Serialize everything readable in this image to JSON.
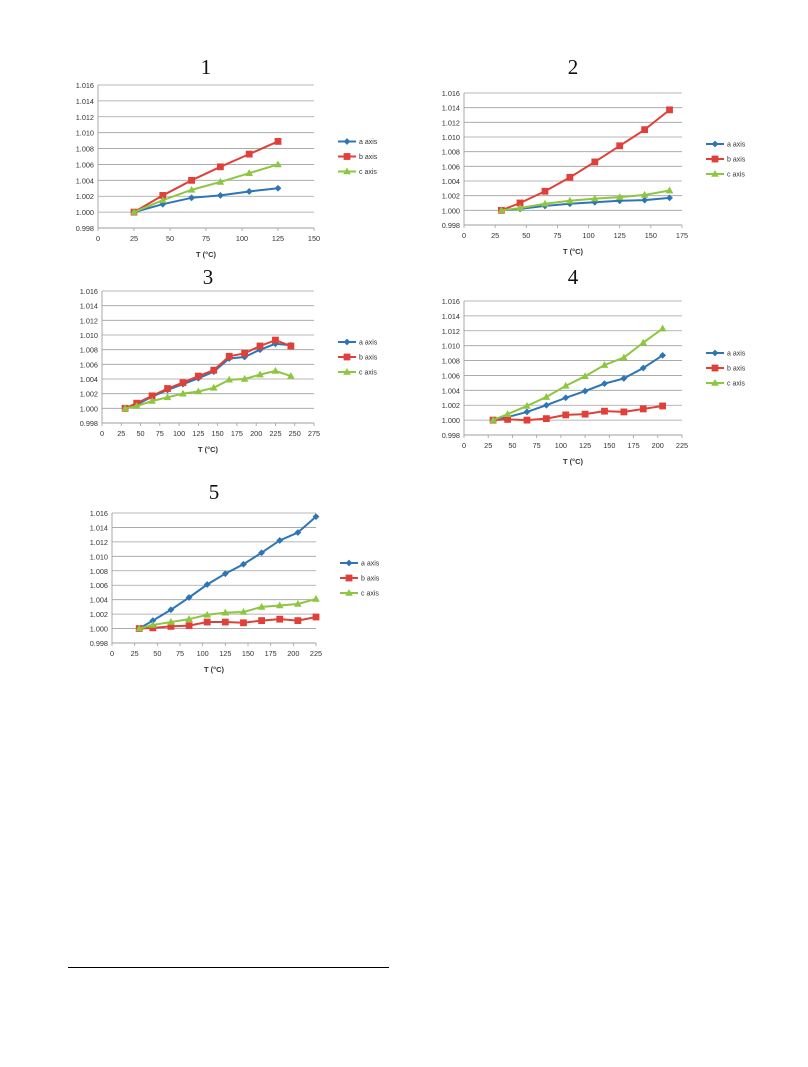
{
  "colors": {
    "a": "#2E75B6",
    "b": "#E0403A",
    "c": "#8DC63F",
    "grid": "#9f9f9f",
    "axis": "#9f9f9f"
  },
  "chart_data": [
    {
      "type": "line",
      "title": "1",
      "xlabel": "T (°C)",
      "ylabel": "",
      "xlim": [
        0,
        150
      ],
      "ylim": [
        0.998,
        1.016
      ],
      "xticks": [
        0,
        25,
        50,
        75,
        100,
        125,
        150
      ],
      "yticks": [
        0.998,
        1.0,
        1.002,
        1.004,
        1.006,
        1.008,
        1.01,
        1.012,
        1.014,
        1.016
      ],
      "xtick_labels": [
        "0",
        "25",
        "50",
        "75",
        "100",
        "125",
        "150"
      ],
      "ytick_labels": [
        "0.998",
        "1.000",
        "1.002",
        "1.004",
        "1.006",
        "1.008",
        "1.010",
        "1.012",
        "1.014",
        "1.016"
      ],
      "grid": "horizontal",
      "legend": "right",
      "series": [
        {
          "name": "a axis",
          "marker": "diamond",
          "x": [
            25,
            45,
            65,
            85,
            105,
            125
          ],
          "y": [
            1.0,
            1.001,
            1.0018,
            1.0021,
            1.0026,
            1.003
          ]
        },
        {
          "name": "b axis",
          "marker": "square",
          "x": [
            25,
            45,
            65,
            85,
            105,
            125
          ],
          "y": [
            1.0,
            1.0021,
            1.004,
            1.0057,
            1.0073,
            1.0089
          ]
        },
        {
          "name": "c axis",
          "marker": "triangle",
          "x": [
            25,
            45,
            65,
            85,
            105,
            125
          ],
          "y": [
            1.0,
            1.0015,
            1.0028,
            1.0038,
            1.0049,
            1.006
          ]
        }
      ]
    },
    {
      "type": "line",
      "title": "2",
      "xlabel": "T (°C)",
      "ylabel": "",
      "xlim": [
        0,
        175
      ],
      "ylim": [
        0.998,
        1.016
      ],
      "xticks": [
        0,
        25,
        50,
        75,
        100,
        125,
        150,
        175
      ],
      "yticks": [
        0.998,
        1.0,
        1.002,
        1.004,
        1.006,
        1.008,
        1.01,
        1.012,
        1.014,
        1.016
      ],
      "xtick_labels": [
        "0",
        "25",
        "50",
        "75",
        "100",
        "125",
        "150",
        "175"
      ],
      "ytick_labels": [
        "0.998",
        "1.000",
        "1.002",
        "1.004",
        "1.006",
        "1.008",
        "1.010",
        "1.012",
        "1.014",
        "1.016"
      ],
      "grid": "horizontal",
      "legend": "right",
      "series": [
        {
          "name": "a axis",
          "marker": "diamond",
          "x": [
            30,
            45,
            65,
            85,
            105,
            125,
            145,
            165
          ],
          "y": [
            1.0,
            1.0002,
            1.0006,
            1.0009,
            1.0011,
            1.0013,
            1.0014,
            1.0017
          ]
        },
        {
          "name": "b axis",
          "marker": "square",
          "x": [
            30,
            45,
            65,
            85,
            105,
            125,
            145,
            165
          ],
          "y": [
            1.0,
            1.001,
            1.0026,
            1.0045,
            1.0066,
            1.0088,
            1.011,
            1.0137
          ]
        },
        {
          "name": "c axis",
          "marker": "triangle",
          "x": [
            30,
            45,
            65,
            85,
            105,
            125,
            145,
            165
          ],
          "y": [
            1.0,
            1.0003,
            1.0009,
            1.0013,
            1.0016,
            1.0018,
            1.0021,
            1.0027
          ]
        }
      ]
    },
    {
      "type": "line",
      "title": "3",
      "xlabel": "T (°C)",
      "ylabel": "",
      "xlim": [
        0,
        275
      ],
      "ylim": [
        0.998,
        1.016
      ],
      "xticks": [
        0,
        25,
        50,
        75,
        100,
        125,
        150,
        175,
        200,
        225,
        250,
        275
      ],
      "yticks": [
        0.998,
        1.0,
        1.002,
        1.004,
        1.006,
        1.008,
        1.01,
        1.012,
        1.014,
        1.016
      ],
      "xtick_labels": [
        "0",
        "25",
        "50",
        "75",
        "100",
        "125",
        "150",
        "175",
        "200",
        "225",
        "250",
        "275"
      ],
      "ytick_labels": [
        "0.998",
        "1.000",
        "1.002",
        "1.004",
        "1.006",
        "1.008",
        "1.010",
        "1.012",
        "1.014",
        "1.016"
      ],
      "grid": "horizontal",
      "legend": "right",
      "series": [
        {
          "name": "a axis",
          "marker": "diamond",
          "x": [
            30,
            45,
            65,
            85,
            105,
            125,
            145,
            165,
            185,
            205,
            225,
            245
          ],
          "y": [
            1.0,
            1.0005,
            1.0016,
            1.0025,
            1.0033,
            1.0041,
            1.005,
            1.0068,
            1.007,
            1.008,
            1.0088,
            1.0086
          ]
        },
        {
          "name": "b axis",
          "marker": "square",
          "x": [
            30,
            45,
            65,
            85,
            105,
            125,
            145,
            165,
            185,
            205,
            225,
            245
          ],
          "y": [
            1.0,
            1.0007,
            1.0017,
            1.0027,
            1.0035,
            1.0044,
            1.0052,
            1.0071,
            1.0075,
            1.0085,
            1.0093,
            1.0085
          ]
        },
        {
          "name": "c axis",
          "marker": "triangle",
          "x": [
            30,
            45,
            65,
            85,
            105,
            125,
            145,
            165,
            185,
            205,
            225,
            245
          ],
          "y": [
            1.0,
            1.0003,
            1.001,
            1.0015,
            1.002,
            1.0023,
            1.0028,
            1.0039,
            1.004,
            1.0046,
            1.0051,
            1.0044
          ]
        }
      ]
    },
    {
      "type": "line",
      "title": "4",
      "xlabel": "T (°C)",
      "ylabel": "",
      "xlim": [
        0,
        225
      ],
      "ylim": [
        0.998,
        1.016
      ],
      "xticks": [
        0,
        25,
        50,
        75,
        100,
        125,
        150,
        175,
        200,
        225
      ],
      "yticks": [
        0.998,
        1.0,
        1.002,
        1.004,
        1.006,
        1.008,
        1.01,
        1.012,
        1.014,
        1.016
      ],
      "xtick_labels": [
        "0",
        "25",
        "50",
        "75",
        "100",
        "125",
        "150",
        "175",
        "200",
        "225"
      ],
      "ytick_labels": [
        "0.998",
        "1.000",
        "1.002",
        "1.004",
        "1.006",
        "1.008",
        "1.010",
        "1.012",
        "1.014",
        "1.016"
      ],
      "grid": "horizontal",
      "legend": "right",
      "series": [
        {
          "name": "a axis",
          "marker": "diamond",
          "x": [
            30,
            45,
            65,
            85,
            105,
            125,
            145,
            165,
            185,
            205
          ],
          "y": [
            1.0,
            1.0004,
            1.0011,
            1.002,
            1.003,
            1.0039,
            1.0049,
            1.0056,
            1.007,
            1.0087
          ]
        },
        {
          "name": "b axis",
          "marker": "square",
          "x": [
            30,
            45,
            65,
            85,
            105,
            125,
            145,
            165,
            185,
            205
          ],
          "y": [
            1.0,
            1.0001,
            1.0,
            1.0002,
            1.0007,
            1.0008,
            1.0012,
            1.0011,
            1.0015,
            1.0019
          ]
        },
        {
          "name": "c axis",
          "marker": "triangle",
          "x": [
            30,
            45,
            65,
            85,
            105,
            125,
            145,
            165,
            185,
            205
          ],
          "y": [
            1.0,
            1.0008,
            1.0019,
            1.0031,
            1.0046,
            1.0059,
            1.0074,
            1.0084,
            1.0104,
            1.0123
          ]
        }
      ]
    },
    {
      "type": "line",
      "title": "5",
      "xlabel": "T (°C)",
      "ylabel": "",
      "xlim": [
        0,
        225
      ],
      "ylim": [
        0.998,
        1.016
      ],
      "xticks": [
        0,
        25,
        50,
        75,
        100,
        125,
        150,
        175,
        200,
        225
      ],
      "yticks": [
        0.998,
        1.0,
        1.002,
        1.004,
        1.006,
        1.008,
        1.01,
        1.012,
        1.014,
        1.016
      ],
      "xtick_labels": [
        "0",
        "25",
        "50",
        "75",
        "100",
        "125",
        "150",
        "175",
        "200",
        "225"
      ],
      "ytick_labels": [
        "0.998",
        "1.000",
        "1.002",
        "1.004",
        "1.006",
        "1.008",
        "1.010",
        "1.012",
        "1.014",
        "1.016"
      ],
      "grid": "horizontal",
      "legend": "right",
      "series": [
        {
          "name": "a axis",
          "marker": "diamond",
          "x": [
            30,
            45,
            65,
            85,
            105,
            125,
            145,
            165,
            185,
            205,
            225
          ],
          "y": [
            1.0,
            1.0011,
            1.0026,
            1.0043,
            1.0061,
            1.0076,
            1.0089,
            1.0105,
            1.0122,
            1.0133,
            1.0155
          ]
        },
        {
          "name": "b axis",
          "marker": "square",
          "x": [
            30,
            45,
            65,
            85,
            105,
            125,
            145,
            165,
            185,
            205,
            225
          ],
          "y": [
            1.0,
            1.0001,
            1.0003,
            1.0004,
            1.0009,
            1.0009,
            1.0008,
            1.0011,
            1.0013,
            1.0011,
            1.0016
          ]
        },
        {
          "name": "c axis",
          "marker": "triangle",
          "x": [
            30,
            45,
            65,
            85,
            105,
            125,
            145,
            165,
            185,
            205,
            225
          ],
          "y": [
            1.0,
            1.0005,
            1.0009,
            1.0013,
            1.0019,
            1.0022,
            1.0023,
            1.003,
            1.0032,
            1.0034,
            1.0041
          ]
        }
      ]
    }
  ]
}
